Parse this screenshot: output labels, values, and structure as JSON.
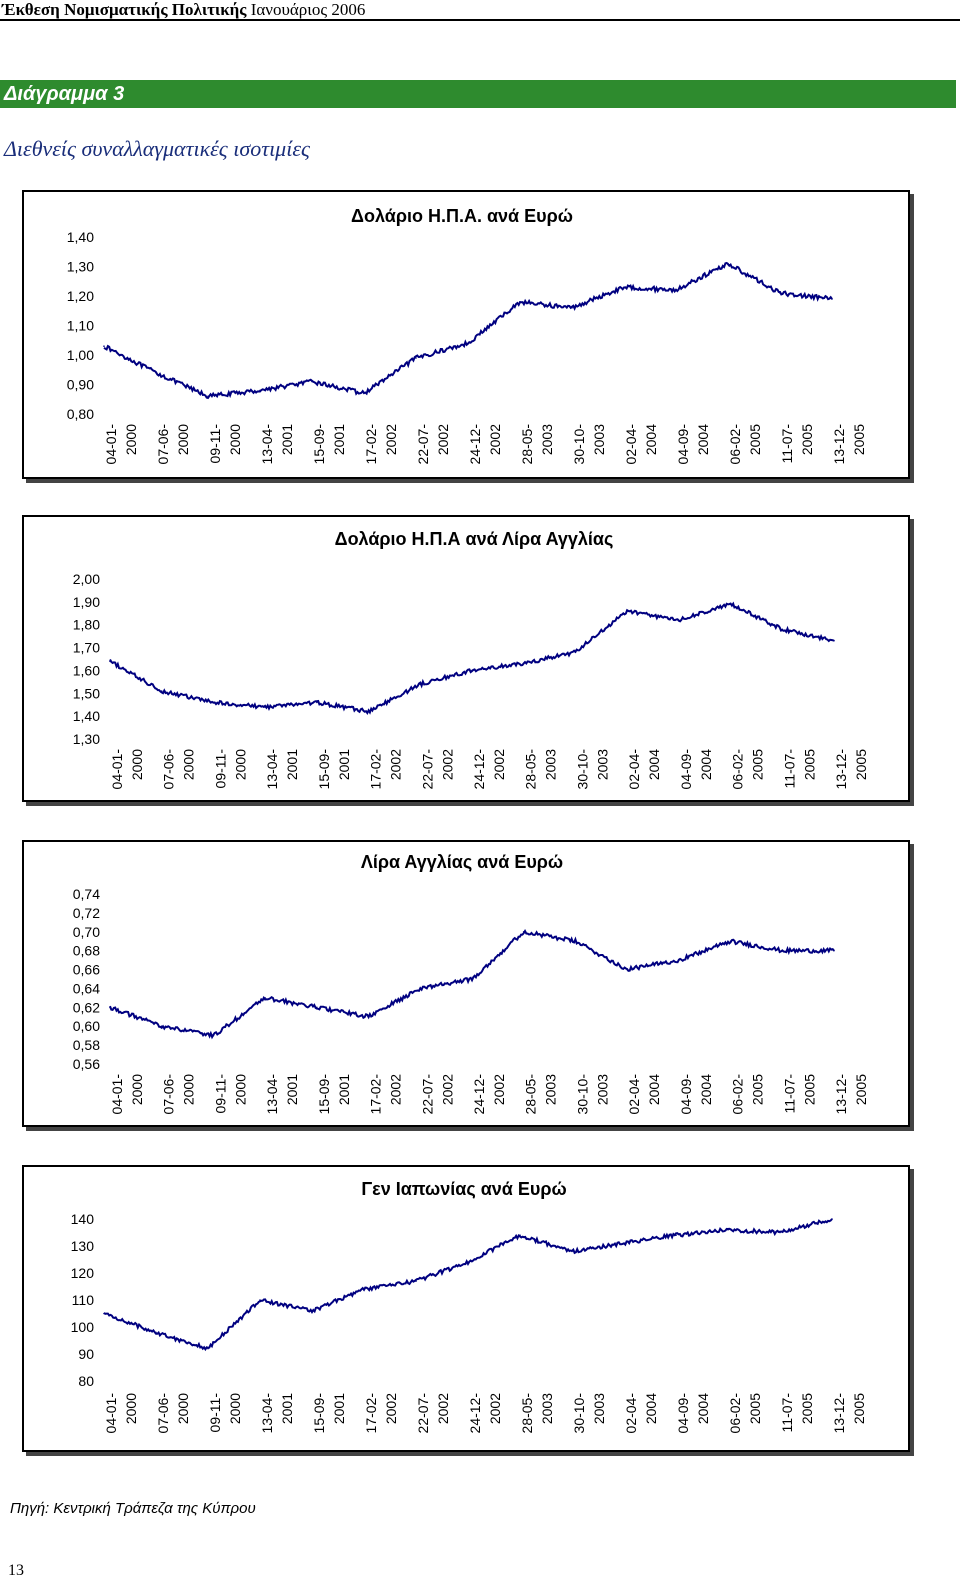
{
  "header": {
    "title_bold": "Έκθεση Νομισματικής Πολιτικής",
    "title_rest": " Ιανουάριος 2006"
  },
  "figure": {
    "label": "Διάγραμμα 3",
    "title": "Διεθνείς συναλλαγματικές ισοτιμίες"
  },
  "source": "Πηγή:  Κεντρική Τράπεζα της Κύπρου",
  "page_number": "13",
  "colors": {
    "line": "#000080",
    "accent": "#2e8b2e",
    "title_blue": "#1a2e7a"
  },
  "x_tick_labels": [
    "04-01-2000",
    "07-06-2000",
    "09-11-2000",
    "13-04-2001",
    "15-09-2001",
    "17-02-2002",
    "22-07-2002",
    "24-12-2002",
    "28-05-2003",
    "30-10-2003",
    "02-04-2004",
    "04-09-2004",
    "06-02-2005",
    "11-07-2005",
    "13-12-2005"
  ],
  "chart_data": [
    {
      "type": "line",
      "title": "Δολάριο Η.Π.Α. ανά Ευρώ",
      "ylim": [
        0.8,
        1.4
      ],
      "yticks": [
        "0,80",
        "0,90",
        "1,00",
        "1,10",
        "1,20",
        "1,30",
        "1,40"
      ],
      "ytick_values": [
        0.8,
        0.9,
        1.0,
        1.1,
        1.2,
        1.3,
        1.4
      ],
      "x": [
        "04-01-2000",
        "07-06-2000",
        "09-11-2000",
        "13-04-2001",
        "15-09-2001",
        "17-02-2002",
        "22-07-2002",
        "24-12-2002",
        "28-05-2003",
        "30-10-2003",
        "02-04-2004",
        "04-09-2004",
        "06-02-2005",
        "11-07-2005",
        "13-12-2005"
      ],
      "y": [
        1.03,
        0.94,
        0.86,
        0.88,
        0.91,
        0.87,
        0.99,
        1.04,
        1.18,
        1.16,
        1.23,
        1.22,
        1.31,
        1.21,
        1.19
      ],
      "grid": false
    },
    {
      "type": "line",
      "title": "Δολάριο Η.Π.Α ανά Λίρα Αγγλίας",
      "ylim": [
        1.3,
        2.0
      ],
      "yticks": [
        "1,30",
        "1,40",
        "1,50",
        "1,60",
        "1,70",
        "1,80",
        "1,90",
        "2,00"
      ],
      "ytick_values": [
        1.3,
        1.4,
        1.5,
        1.6,
        1.7,
        1.8,
        1.9,
        2.0
      ],
      "x": [
        "04-01-2000",
        "07-06-2000",
        "09-11-2000",
        "13-04-2001",
        "15-09-2001",
        "17-02-2002",
        "22-07-2002",
        "24-12-2002",
        "28-05-2003",
        "30-10-2003",
        "02-04-2004",
        "04-09-2004",
        "06-02-2005",
        "11-07-2005",
        "13-12-2005"
      ],
      "y": [
        1.64,
        1.51,
        1.46,
        1.44,
        1.46,
        1.42,
        1.54,
        1.6,
        1.63,
        1.68,
        1.86,
        1.82,
        1.89,
        1.78,
        1.73
      ],
      "grid": false
    },
    {
      "type": "line",
      "title": "Λίρα Αγγλίας ανά Ευρώ",
      "ylim": [
        0.56,
        0.74
      ],
      "yticks": [
        "0,56",
        "0,58",
        "0,60",
        "0,62",
        "0,64",
        "0,66",
        "0,68",
        "0,70",
        "0,72",
        "0,74"
      ],
      "ytick_values": [
        0.56,
        0.58,
        0.6,
        0.62,
        0.64,
        0.66,
        0.68,
        0.7,
        0.72,
        0.74
      ],
      "x": [
        "04-01-2000",
        "07-06-2000",
        "09-11-2000",
        "13-04-2001",
        "15-09-2001",
        "17-02-2002",
        "22-07-2002",
        "24-12-2002",
        "28-05-2003",
        "30-10-2003",
        "02-04-2004",
        "04-09-2004",
        "06-02-2005",
        "11-07-2005",
        "13-12-2005"
      ],
      "y": [
        0.62,
        0.6,
        0.59,
        0.63,
        0.62,
        0.61,
        0.64,
        0.65,
        0.7,
        0.69,
        0.66,
        0.67,
        0.69,
        0.68,
        0.68
      ],
      "grid": false
    },
    {
      "type": "line",
      "title": "Γεν Ιαπωνίας ανά Ευρώ",
      "ylim": [
        80,
        140
      ],
      "yticks": [
        "80",
        "90",
        "100",
        "110",
        "120",
        "130",
        "140"
      ],
      "ytick_values": [
        80,
        90,
        100,
        110,
        120,
        130,
        140
      ],
      "x": [
        "04-01-2000",
        "07-06-2000",
        "09-11-2000",
        "13-04-2001",
        "15-09-2001",
        "17-02-2002",
        "22-07-2002",
        "24-12-2002",
        "28-05-2003",
        "30-10-2003",
        "02-04-2004",
        "04-09-2004",
        "06-02-2005",
        "11-07-2005",
        "13-12-2005"
      ],
      "y": [
        105,
        98,
        92,
        110,
        106,
        114,
        117,
        124,
        134,
        128,
        131,
        134,
        136,
        135,
        140
      ],
      "grid": false
    }
  ]
}
